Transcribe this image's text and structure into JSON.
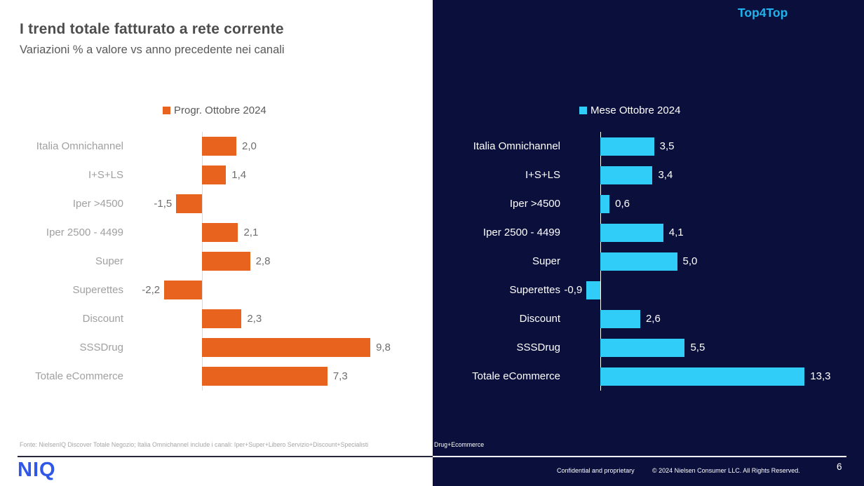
{
  "slide": {
    "title": "I trend totale fatturato a rete corrente",
    "subtitle": "Variazioni % a valore vs anno precedente nei canali",
    "top_right_label": "Top4Top",
    "source_note": {
      "gray_part": "Fonte: NielsenIQ Discover Totale Negozio; Italia Omnichannel include i canali: Iper+Super+Libero Servizio+Discount+Specialisti ",
      "white_part": "Drug+Ecommerce"
    },
    "footer": {
      "logo_text": "NIQ",
      "confidential": "Confidential and proprietary",
      "copyright": "© 2024 Nielsen Consumer LLC. All Rights Reserved.",
      "page_number": "6"
    },
    "colors": {
      "orange": "#E8631D",
      "cyan": "#30CDF8",
      "navy": "#0A0F3C",
      "accent_cyan": "#1FB4ED",
      "niq_blue": "#3157E8"
    }
  },
  "chart_data": [
    {
      "type": "bar",
      "orientation": "horizontal",
      "legend": "Progr. Ottobre 2024",
      "bar_color": "#E8631D",
      "background": "#ffffff",
      "categories": [
        "Italia Omnichannel",
        "I+S+LS",
        "Iper >4500",
        "Iper 2500 - 4499",
        "Super",
        "Superettes",
        "Discount",
        "SSSDrug",
        "Totale eCommerce"
      ],
      "values": [
        2.0,
        1.4,
        -1.5,
        2.1,
        2.8,
        -2.2,
        2.3,
        9.8,
        7.3
      ],
      "value_labels": [
        "2,0",
        "1,4",
        "-1,5",
        "2,1",
        "2,8",
        "-2,2",
        "2,3",
        "9,8",
        "7,3"
      ],
      "xlim": [
        -3,
        11
      ],
      "grid": false,
      "legend_position": "top"
    },
    {
      "type": "bar",
      "orientation": "horizontal",
      "legend": "Mese Ottobre 2024",
      "bar_color": "#30CDF8",
      "background": "#0A0F3C",
      "categories": [
        "Italia Omnichannel",
        "I+S+LS",
        "Iper >4500",
        "Iper 2500 - 4499",
        "Super",
        "Superettes",
        "Discount",
        "SSSDrug",
        "Totale eCommerce"
      ],
      "values": [
        3.5,
        3.4,
        0.6,
        4.1,
        5.0,
        -0.9,
        2.6,
        5.5,
        13.3
      ],
      "value_labels": [
        "3,5",
        "3,4",
        "0,6",
        "4,1",
        "5,0",
        "-0,9",
        "2,6",
        "5,5",
        "13,3"
      ],
      "xlim": [
        -2,
        15
      ],
      "grid": false,
      "legend_position": "top"
    }
  ]
}
